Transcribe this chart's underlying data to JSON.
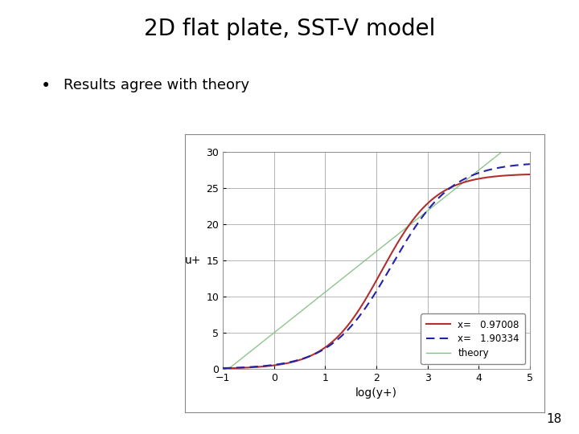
{
  "title": "2D flat plate, SST-V model",
  "bullet": "Results agree with theory",
  "xlabel": "log(y+)",
  "ylabel": "u+",
  "xlim": [
    -1,
    5
  ],
  "ylim": [
    0,
    30
  ],
  "xticks": [
    -1,
    0,
    1,
    2,
    3,
    4,
    5
  ],
  "yticks": [
    0,
    5,
    10,
    15,
    20,
    25,
    30
  ],
  "legend_entries": [
    "x=   0.97008",
    "x=   1.90334",
    "theory"
  ],
  "line1_color": "#b03030",
  "line2_color": "#2222aa",
  "line3_color": "#80c080",
  "page_number": "18",
  "background_color": "#ffffff",
  "plot_bg_color": "#ffffff",
  "title_fontsize": 20,
  "bullet_fontsize": 13,
  "axis_fontsize": 10,
  "tick_fontsize": 9
}
